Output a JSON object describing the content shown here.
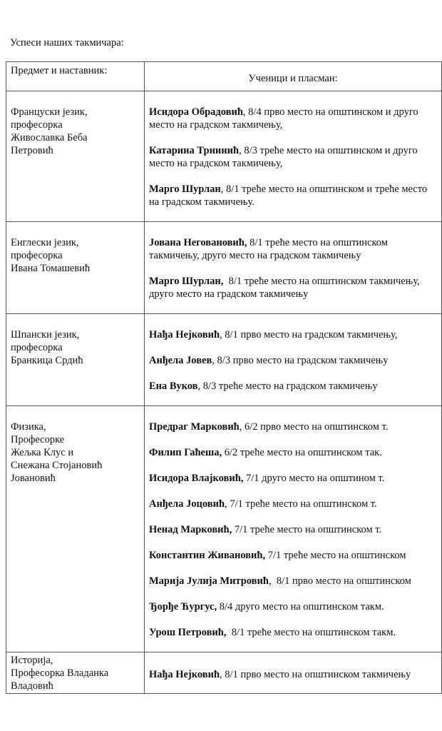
{
  "title": "Успеси наших такмичара:",
  "header": {
    "left": "Предмет и наставник:",
    "right": "Ученици и пласман:"
  },
  "rows": [
    {
      "teacher": [
        "Француски језик,",
        "професорка",
        "Живославка Беба",
        "Петровић"
      ],
      "entries": [
        {
          "name": "Исидора Обрадовић",
          "text": ", 8/4 прво место на општинском и друго место на градском такмичењу,"
        },
        {
          "name": "Катарина Трнинић",
          "text": ", 8/3 треће место на општинском и друго место на градском такмичењу,"
        },
        {
          "name": "Марго Шурлан",
          "text": ", 8/1 треће место на општинском и треће место на градском такмичењу."
        }
      ]
    },
    {
      "teacher": [
        "Енглески језик,",
        "професорка",
        "Ивана Томашевић"
      ],
      "entries": [
        {
          "name": "Јована Неговановић,",
          "text": " 8/1 треће место на општинском такмичењу, друго место на градском такмичењу"
        },
        {
          "name": "Марго Шурлан,",
          "text": "  8/1 треће место на општинском такмичењу, друго место на градском такмичењу"
        }
      ]
    },
    {
      "teacher": [
        "Шпански језик,",
        "професорка",
        "Бранкица Срдић"
      ],
      "entries": [
        {
          "name": "Нађа Нејковић",
          "text": ", 8/1 прво место на градском такмичењу,"
        },
        {
          "name": "Анђела Јовев",
          "text": ", 8/3 прво место на градском такмичењу"
        },
        {
          "name": "Ена Вуков",
          "text": ", 8/3 треће место на градском такмичењу"
        }
      ]
    },
    {
      "teacher": [
        "Физика,",
        "Професорке",
        "Жељка Клус и",
        "Снежана Стојановић",
        "Јовановић"
      ],
      "entries": [
        {
          "name": "Предраг Марковић",
          "text": ", 6/2 прво место на општинском т."
        },
        {
          "name": "Филип Гаћеша,",
          "text": " 6/2 треће место на општинском так."
        },
        {
          "name": "Исидора Влајковић,",
          "text": " 7/1 друго место на општином т."
        },
        {
          "name": "Анђела Јоцовић",
          "text": ", 7/1 треће место на општинском т."
        },
        {
          "name": "Ненад Марковић,",
          "text": " 7/1 треће место на општинском т."
        },
        {
          "name": "Константин Живановић,",
          "text": " 7/1 треће место на општинском"
        },
        {
          "name": "Марија Јулија Митровић",
          "text": ",  8/1 прво место на општинском"
        },
        {
          "name": "Ђорђе Ћургус,",
          "text": " 8/4 друго место на општинском такм."
        },
        {
          "name": "Урош Петровић,",
          "text": "  8/1 треће место на општинском такм."
        }
      ]
    },
    {
      "teacher": [
        "Историја,",
        "Професорка Владанка",
        "Владовић"
      ],
      "entries": [
        {
          "name": "Нађа Нејковић",
          "text": ", 8/1 прво место на општинском такмичењу"
        }
      ]
    }
  ]
}
